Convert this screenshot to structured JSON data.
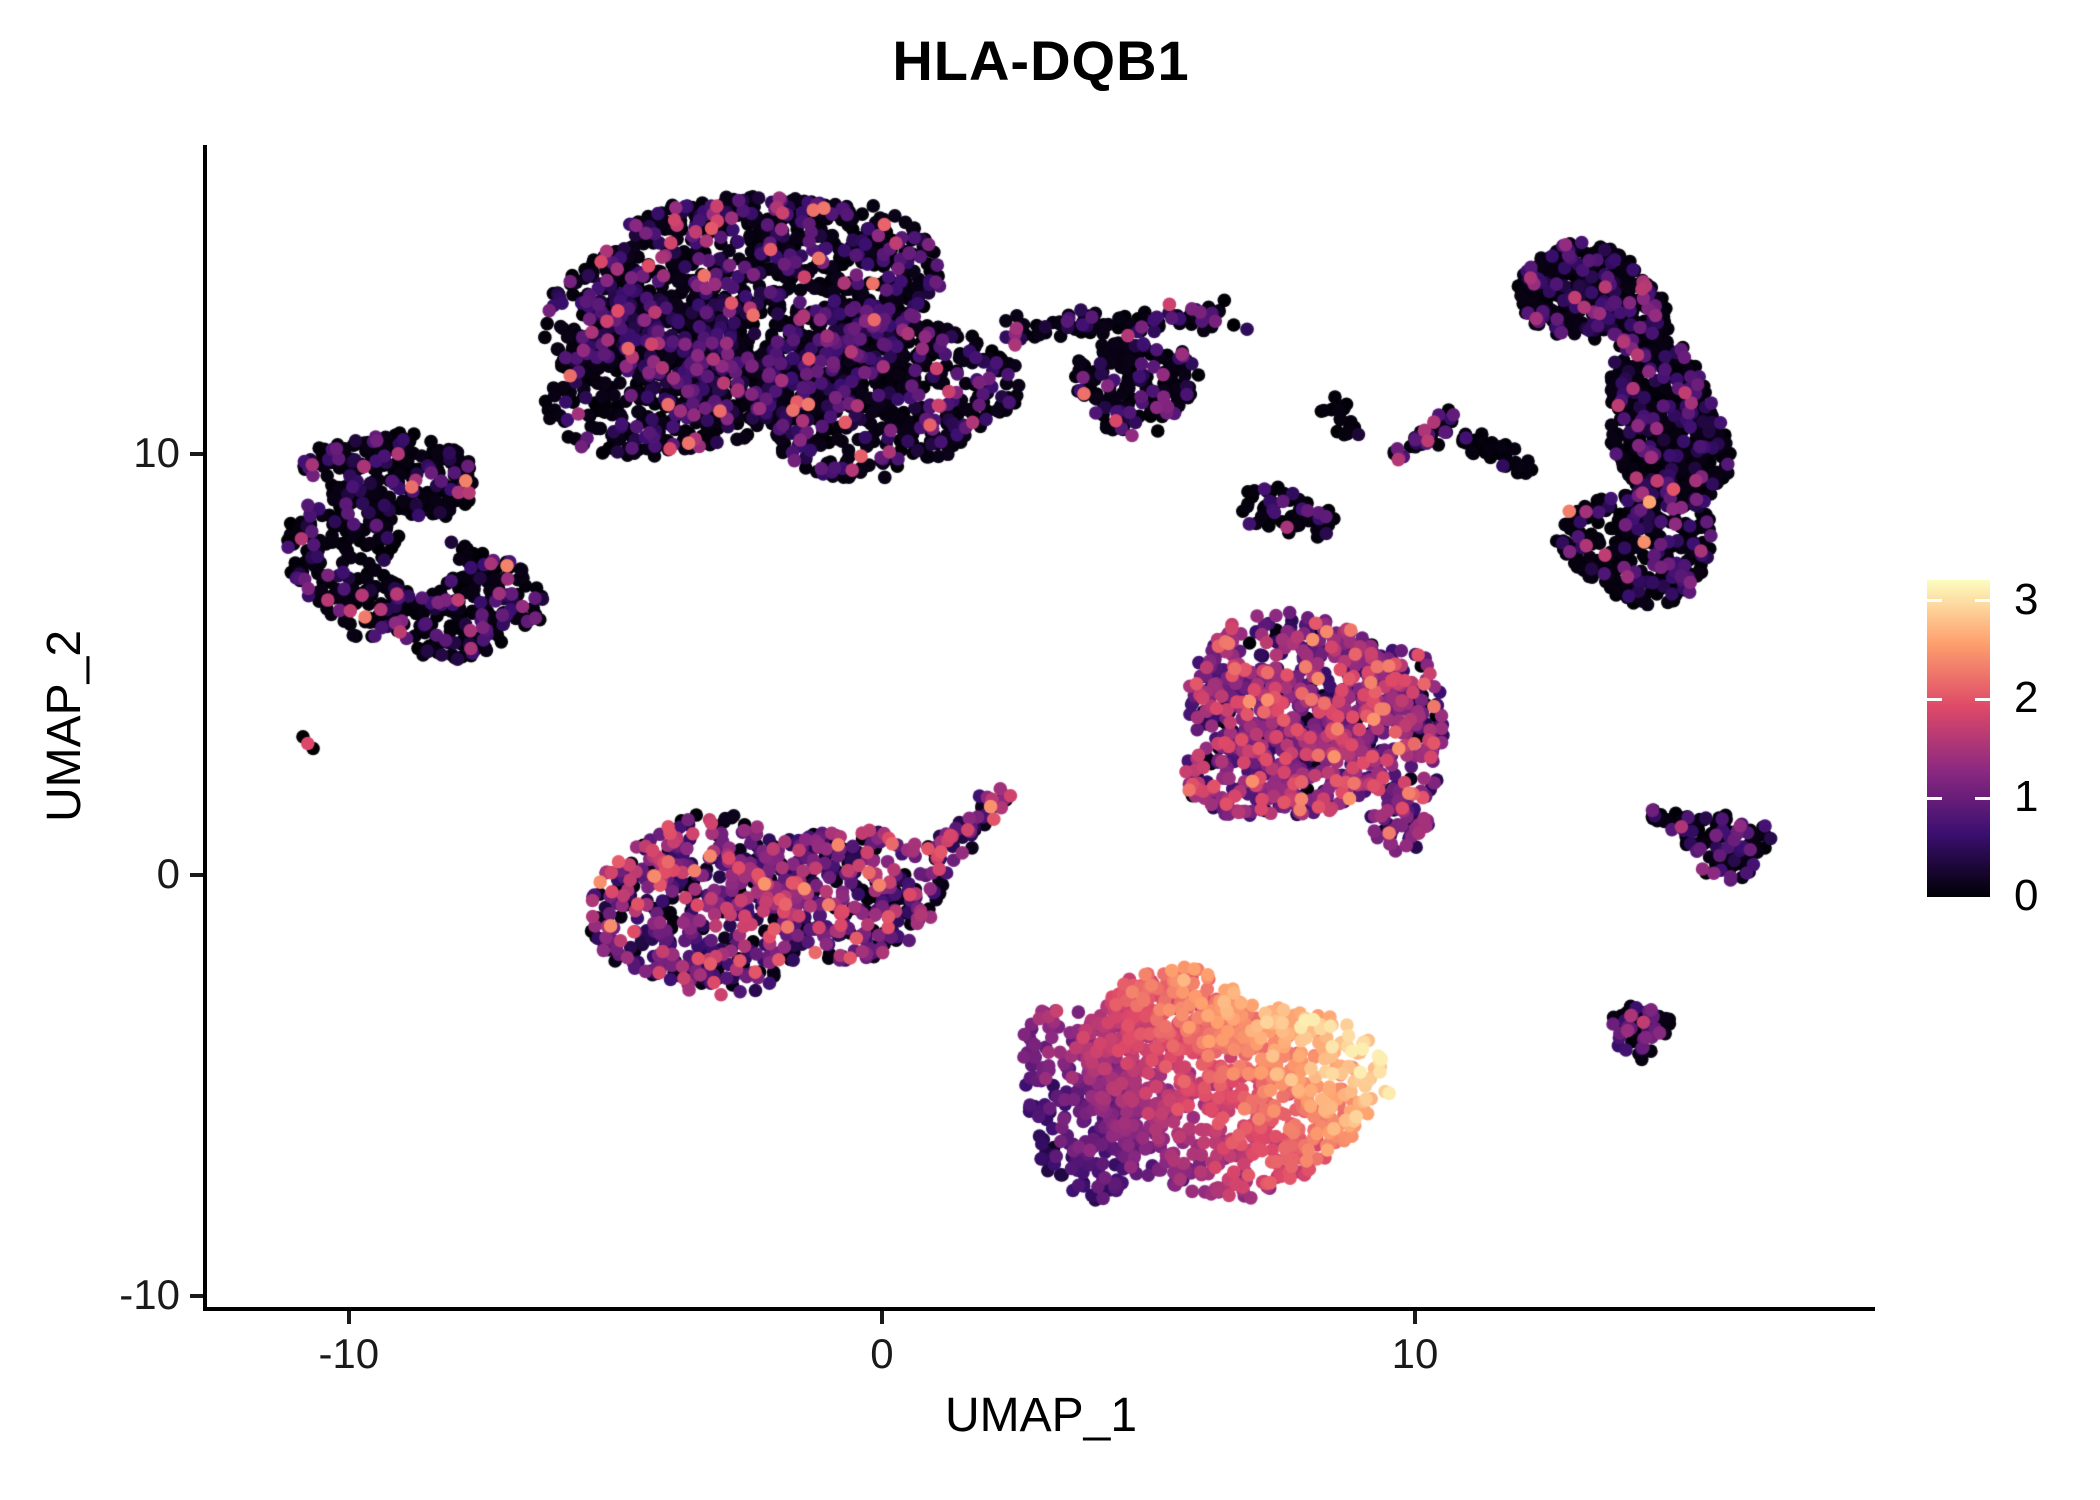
{
  "figure": {
    "title": "HLA-DQB1",
    "background": "#ffffff"
  },
  "axes": {
    "x": {
      "label": "UMAP_1",
      "range": [
        -12.66,
        18.63
      ],
      "ticks": [
        {
          "v": -10,
          "label": "-10"
        },
        {
          "v": 0,
          "label": "0"
        },
        {
          "v": 10,
          "label": "10"
        }
      ]
    },
    "y": {
      "label": "UMAP_2",
      "range": [
        -10.25,
        17.32
      ],
      "ticks": [
        {
          "v": -10,
          "label": "-10"
        },
        {
          "v": 0,
          "label": "0"
        },
        {
          "v": 10,
          "label": "10"
        }
      ]
    }
  },
  "colorbar": {
    "vmin": 0,
    "vmax": 3.21,
    "ticks": [
      {
        "v": 0,
        "label": "0"
      },
      {
        "v": 1,
        "label": "1"
      },
      {
        "v": 2,
        "label": "2"
      },
      {
        "v": 3,
        "label": "3"
      }
    ],
    "stops": [
      "#000004",
      "#3b0f70",
      "#8c2981",
      "#de4968",
      "#fe9f6d",
      "#fcfdbf"
    ]
  },
  "chart_data": {
    "type": "scatter",
    "title": "HLA-DQB1",
    "xlabel": "UMAP_1",
    "ylabel": "UMAP_2",
    "xlim": [
      -12.66,
      18.63
    ],
    "ylim": [
      -10.25,
      17.32
    ],
    "grid": false,
    "legend": {
      "position": "right",
      "colormap": "magma",
      "vmin": 0,
      "vmax": 3.21,
      "tick_values": [
        0,
        1,
        2,
        3
      ]
    },
    "point_radius_px": 6.8,
    "expr_profiles": {
      "low": [
        [
          0.7,
          0,
          0.12
        ],
        [
          0.22,
          0.3,
          0.95
        ],
        [
          0.06,
          0.95,
          1.6
        ],
        [
          0.02,
          1.6,
          2.3
        ]
      ],
      "verylow": [
        [
          0.775,
          0,
          0.1
        ],
        [
          0.17,
          0.3,
          0.95
        ],
        [
          0.05,
          0.95,
          1.7
        ],
        [
          0.005,
          1.7,
          2.9
        ]
      ],
      "mid": [
        [
          0.1,
          0,
          0.15
        ],
        [
          0.3,
          0.4,
          0.95
        ],
        [
          0.38,
          0.95,
          1.5
        ],
        [
          0.18,
          1.5,
          2.05
        ],
        [
          0.04,
          2.05,
          2.5
        ]
      ],
      "midlow": [
        [
          0.28,
          0,
          0.15
        ],
        [
          0.3,
          0.35,
          0.95
        ],
        [
          0.28,
          0.95,
          1.55
        ],
        [
          0.12,
          1.55,
          2.1
        ],
        [
          0.02,
          2.1,
          2.5
        ]
      ],
      "black": [
        [
          0.92,
          0,
          0.08
        ],
        [
          0.08,
          0.3,
          0.8
        ]
      ],
      "streak": [
        [
          0.55,
          0,
          0.1
        ],
        [
          0.35,
          0.5,
          1.1
        ],
        [
          0.1,
          1.1,
          1.9
        ]
      ],
      "smallflag": [
        [
          0.68,
          0,
          0.1
        ],
        [
          0.3,
          0.4,
          1.1
        ],
        [
          0.02,
          1.1,
          1.6
        ]
      ],
      "smallround": [
        [
          0.5,
          0,
          0.1
        ],
        [
          0.44,
          0.5,
          1.2
        ],
        [
          0.06,
          1.2,
          1.7
        ]
      ],
      "blobpair": [
        [
          0.78,
          0,
          0.1
        ],
        [
          0.18,
          0.4,
          1.0
        ],
        [
          0.04,
          1.3,
          2.0
        ]
      ]
    },
    "clusters": [
      {
        "name": "top-center-main",
        "expr": "low",
        "shape": [
          {
            "type": "ellipse",
            "c": [
              -2.1,
              13.6
            ],
            "r": [
              3.1,
              2.75
            ],
            "rot": 0,
            "n": 1150
          },
          {
            "type": "ellipse",
            "c": [
              -0.05,
              11.5
            ],
            "r": [
              2.45,
              2.0
            ],
            "rot": 0,
            "n": 520
          },
          {
            "type": "ellipse",
            "c": [
              -4.2,
              11.7
            ],
            "r": [
              2.1,
              1.9
            ],
            "rot": 0,
            "n": 420
          },
          {
            "type": "ellipse",
            "c": [
              -5.0,
              13.3
            ],
            "r": [
              1.3,
              1.5
            ],
            "rot": 0,
            "n": 160
          },
          {
            "type": "band",
            "from": [
              2.3,
              12.9
            ],
            "to": [
              6.4,
              13.3
            ],
            "w": 0.42,
            "n": 110
          },
          {
            "type": "ellipse",
            "c": [
              4.75,
              11.6
            ],
            "r": [
              1.15,
              1.15
            ],
            "rot": 0,
            "n": 170
          }
        ],
        "points": [
          {
            "u": [
              6.6,
              13.05
            ],
            "v": 0
          },
          {
            "u": [
              6.85,
              12.95
            ],
            "v": 0.5
          }
        ]
      },
      {
        "name": "top-right-crescent",
        "expr": "verylow",
        "shape": [
          {
            "type": "ellipse",
            "c": [
              13.3,
              13.75
            ],
            "r": [
              1.45,
              1.1
            ],
            "rot": -25,
            "n": 420
          },
          {
            "type": "ellipse",
            "c": [
              14.7,
              10.8
            ],
            "r": [
              1.05,
              2.2
            ],
            "rot": 12,
            "n": 470
          },
          {
            "type": "ellipse",
            "c": [
              14.2,
              7.85
            ],
            "r": [
              1.45,
              1.35
            ],
            "rot": -10,
            "n": 300
          }
        ],
        "points": [
          {
            "u": [
              14.4,
              8.85
            ],
            "v": 2.6
          },
          {
            "u": [
              14.3,
              7.9
            ],
            "v": 2.45
          },
          {
            "u": [
              13.0,
              13.7
            ],
            "v": 1.7
          }
        ]
      },
      {
        "name": "left-ring",
        "expr": "verylow",
        "hole": {
          "c": [
            -8.6,
            7.45
          ],
          "r": [
            0.65,
            0.7
          ]
        },
        "shape": [
          {
            "type": "ellipse",
            "c": [
              -9.1,
              9.5
            ],
            "r": [
              1.65,
              0.95
            ],
            "rot": -12,
            "n": 230
          },
          {
            "type": "ellipse",
            "c": [
              -10.0,
              7.5
            ],
            "r": [
              1.05,
              1.8
            ],
            "rot": 8,
            "n": 210
          },
          {
            "type": "ellipse",
            "c": [
              -7.9,
              6.5
            ],
            "r": [
              1.45,
              1.35
            ],
            "rot": -18,
            "n": 230
          }
        ],
        "points": [
          {
            "u": [
              -9.4,
              6.3
            ],
            "v": 1.6
          }
        ]
      },
      {
        "name": "tiny-doublet",
        "expr": "black",
        "shape": [],
        "points": [
          {
            "u": [
              -10.86,
              3.28
            ],
            "v": 0
          },
          {
            "u": [
              -10.77,
              3.12
            ],
            "v": 1.9
          },
          {
            "u": [
              -10.67,
              3.0
            ],
            "v": 0
          }
        ]
      },
      {
        "name": "mid-right",
        "expr": "mid",
        "shape": [
          {
            "type": "ellipse",
            "c": [
              7.85,
              4.4
            ],
            "r": [
              2.2,
              1.7
            ],
            "rot": -8,
            "n": 480
          },
          {
            "type": "ellipse",
            "c": [
              7.5,
              2.75
            ],
            "r": [
              1.8,
              1.45
            ],
            "rot": 8,
            "n": 330
          },
          {
            "type": "ellipse",
            "c": [
              9.5,
              3.45
            ],
            "r": [
              1.15,
              1.9
            ],
            "rot": 0,
            "n": 210
          },
          {
            "type": "ellipse",
            "c": [
              9.7,
              1.1
            ],
            "r": [
              0.55,
              0.55
            ],
            "rot": 0,
            "n": 45
          }
        ]
      },
      {
        "name": "mid-left",
        "expr": "midlow",
        "shape": [
          {
            "type": "ellipse",
            "c": [
              -3.4,
              -0.75
            ],
            "r": [
              2.0,
              2.1
            ],
            "rot": 0,
            "n": 470
          },
          {
            "type": "ellipse",
            "c": [
              -0.6,
              -0.35
            ],
            "r": [
              1.8,
              1.55
            ],
            "rot": -12,
            "n": 330
          },
          {
            "type": "band",
            "from": [
              1.0,
              0.3
            ],
            "to": [
              2.3,
              2.0
            ],
            "w": 0.35,
            "n": 55
          }
        ]
      },
      {
        "name": "bottom-bright",
        "expr": {
          "type": "gradient",
          "from": [
            3.1,
            -7.5
          ],
          "v0": 0.35,
          "to": [
            8.1,
            -3.8
          ],
          "v1": 2.75,
          "noise": 0.5
        },
        "shape": [
          {
            "type": "ellipse",
            "c": [
              6.5,
              -5.1
            ],
            "r": [
              2.85,
              2.4
            ],
            "rot": -12,
            "n": 760
          },
          {
            "type": "ellipse",
            "c": [
              3.95,
              -5.35
            ],
            "r": [
              1.35,
              2.3
            ],
            "rot": 8,
            "n": 320
          },
          {
            "type": "ellipse",
            "c": [
              5.6,
              -3.25
            ],
            "r": [
              1.5,
              1.0
            ],
            "rot": -10,
            "n": 170
          }
        ]
      },
      {
        "name": "mid-small-pair",
        "expr": "black",
        "shape": [
          {
            "type": "ellipse",
            "c": [
              8.5,
              11.05
            ],
            "r": [
              0.3,
              0.3
            ],
            "rot": 0,
            "n": 10
          },
          {
            "type": "ellipse",
            "c": [
              8.72,
              10.65
            ],
            "r": [
              0.28,
              0.28
            ],
            "rot": 0,
            "n": 8
          }
        ]
      },
      {
        "name": "streak-a",
        "expr": "streak",
        "shape": [
          {
            "type": "band",
            "from": [
              9.6,
              9.95
            ],
            "to": [
              10.8,
              10.85
            ],
            "w": 0.3,
            "n": 40
          }
        ]
      },
      {
        "name": "streak-b",
        "expr": "black",
        "shape": [
          {
            "type": "band",
            "from": [
              10.85,
              10.5
            ],
            "to": [
              12.15,
              9.6
            ],
            "w": 0.28,
            "n": 45
          }
        ]
      },
      {
        "name": "small-blob-pair",
        "expr": "blobpair",
        "shape": [
          {
            "type": "ellipse",
            "c": [
              7.3,
              8.75
            ],
            "r": [
              0.6,
              0.55
            ],
            "rot": 0,
            "n": 34
          },
          {
            "type": "ellipse",
            "c": [
              8.05,
              8.4
            ],
            "r": [
              0.5,
              0.45
            ],
            "rot": 0,
            "n": 26
          }
        ],
        "points": [
          {
            "u": [
              7.6,
              8.25
            ],
            "v": 1.5
          }
        ]
      },
      {
        "name": "right-flag",
        "expr": "smallflag",
        "shape": [
          {
            "type": "band",
            "from": [
              14.45,
              1.5
            ],
            "to": [
              15.3,
              1.12
            ],
            "w": 0.22,
            "n": 22
          },
          {
            "type": "ellipse",
            "c": [
              15.8,
              0.72
            ],
            "r": [
              0.85,
              0.78
            ],
            "rot": -10,
            "n": 95
          }
        ]
      },
      {
        "name": "right-round",
        "expr": "smallround",
        "shape": [
          {
            "type": "ellipse",
            "c": [
              14.2,
              -3.7
            ],
            "r": [
              0.58,
              0.68
            ],
            "rot": 0,
            "n": 58
          }
        ]
      }
    ]
  }
}
